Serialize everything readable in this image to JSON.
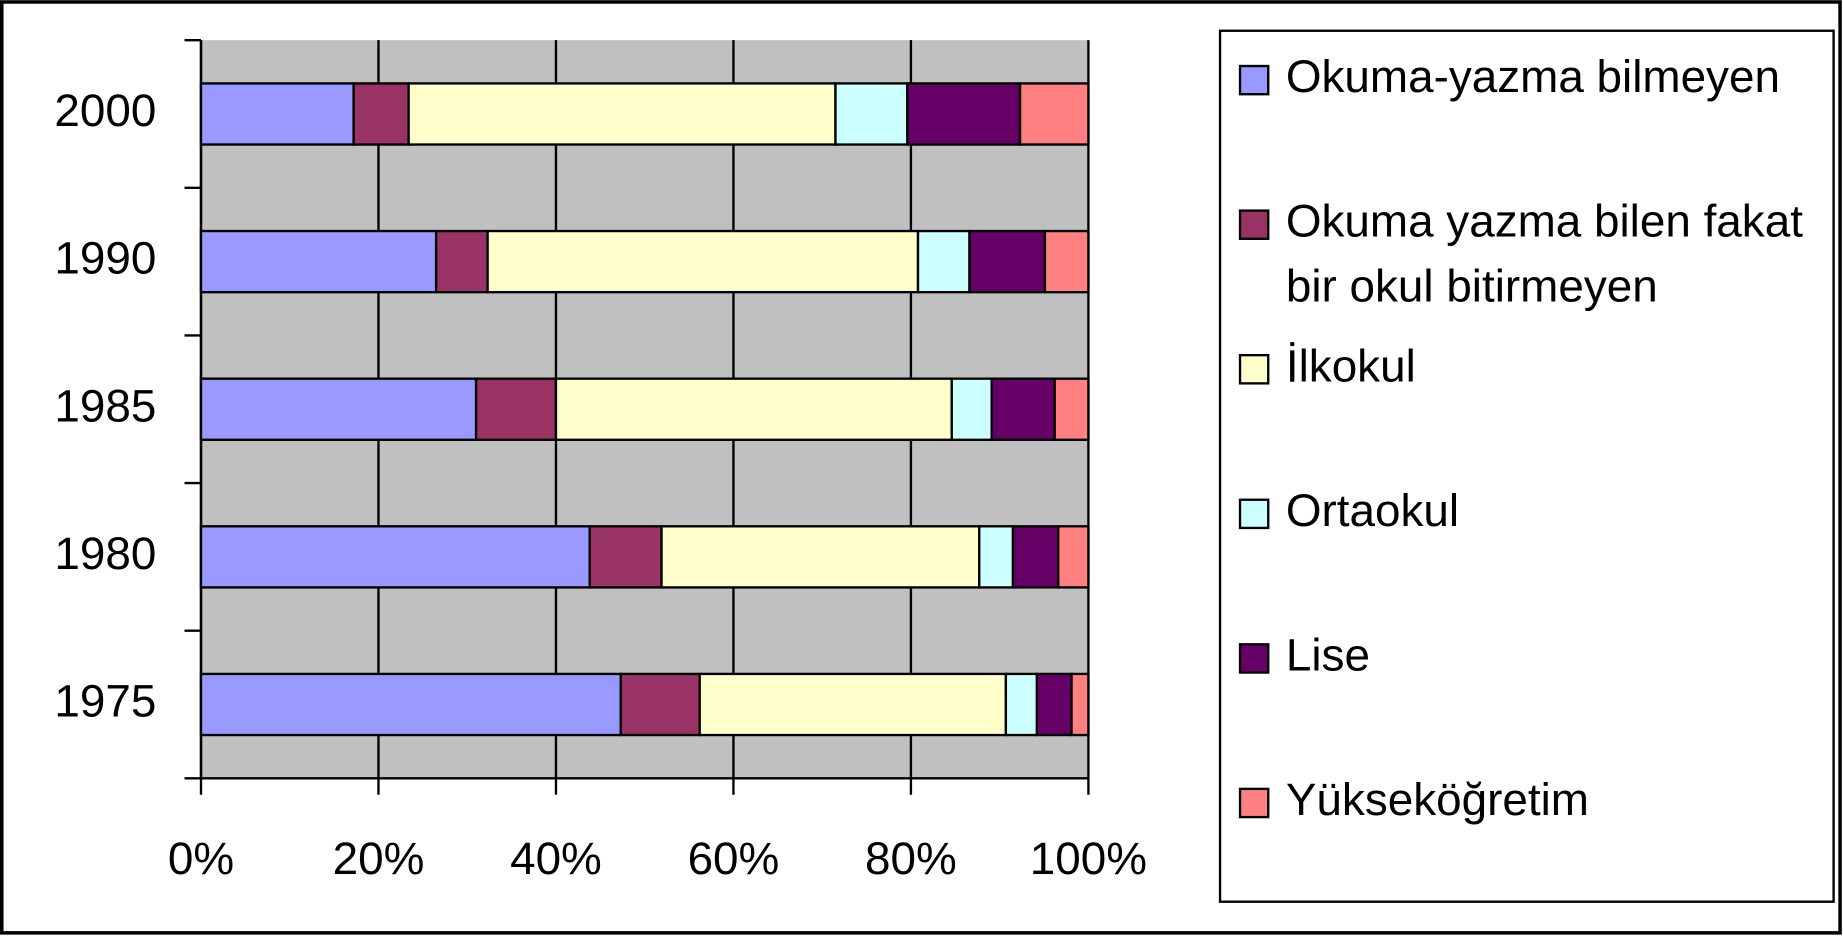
{
  "chart_data": {
    "type": "bar",
    "orientation": "horizontal",
    "stacked": true,
    "categories": [
      "1975",
      "1980",
      "1985",
      "1990",
      "2000"
    ],
    "series": [
      {
        "name": "Okuma-yazma bilmeyen",
        "color": "#9999ff",
        "values": [
          47.3,
          43.8,
          31.0,
          26.5,
          17.2
        ]
      },
      {
        "name": "Okuma yazma bilen fakat bir okul bitirmeyen",
        "color": "#993366",
        "values": [
          8.9,
          8.1,
          9.0,
          5.8,
          6.2
        ]
      },
      {
        "name": "İlkokul",
        "color": "#ffffcc",
        "values": [
          34.5,
          35.8,
          44.6,
          48.5,
          48.1
        ]
      },
      {
        "name": "Ortaokul",
        "color": "#ccffff",
        "values": [
          3.5,
          3.8,
          4.5,
          5.8,
          8.1
        ]
      },
      {
        "name": "Lise",
        "color": "#660066",
        "values": [
          3.9,
          5.1,
          7.1,
          8.5,
          12.7
        ]
      },
      {
        "name": "Yükseköğretim",
        "color": "#ff8080",
        "values": [
          1.9,
          3.4,
          3.8,
          4.9,
          7.7
        ]
      }
    ],
    "xlim": [
      0,
      100
    ],
    "xticks": [
      {
        "value": 0,
        "label": "0%"
      },
      {
        "value": 20,
        "label": "20%"
      },
      {
        "value": 40,
        "label": "40%"
      },
      {
        "value": 60,
        "label": "60%"
      },
      {
        "value": 80,
        "label": "80%"
      },
      {
        "value": 100,
        "label": "100%"
      }
    ],
    "grid": true,
    "legend": "right"
  }
}
